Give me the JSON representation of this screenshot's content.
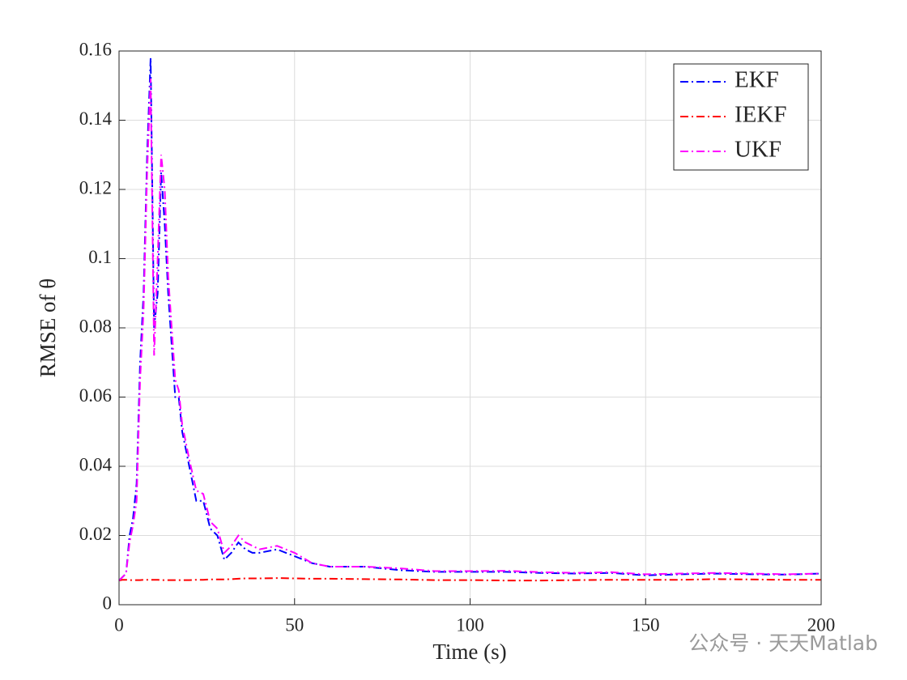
{
  "chart_data": {
    "type": "line",
    "x_label": "Time (s)",
    "y_label": "RMSE of θ",
    "xlim": [
      0,
      200
    ],
    "xticks": [
      0,
      50,
      100,
      150,
      200
    ],
    "ylim": [
      0,
      0.16
    ],
    "yticks": [
      0,
      0.02,
      0.04,
      0.06,
      0.08,
      0.1,
      0.12,
      0.14,
      0.16
    ],
    "grid": true,
    "legend": "upper-right",
    "line_style": "dash-dot",
    "watermark": "公众号 · 天天Matlab",
    "x": [
      0,
      1,
      2,
      3,
      4,
      5,
      6,
      7,
      8,
      9,
      10,
      11,
      12,
      13,
      14,
      15,
      16,
      17,
      18,
      19,
      20,
      22,
      24,
      26,
      28,
      30,
      32,
      34,
      36,
      38,
      40,
      45,
      50,
      55,
      60,
      70,
      80,
      90,
      100,
      110,
      120,
      130,
      140,
      150,
      160,
      170,
      180,
      190,
      200
    ],
    "series": [
      {
        "name": "EKF",
        "color": "#0000ff",
        "values": [
          0.007,
          0.008,
          0.009,
          0.02,
          0.025,
          0.035,
          0.07,
          0.09,
          0.13,
          0.158,
          0.08,
          0.09,
          0.125,
          0.11,
          0.09,
          0.075,
          0.06,
          0.06,
          0.05,
          0.045,
          0.04,
          0.03,
          0.03,
          0.022,
          0.02,
          0.013,
          0.015,
          0.018,
          0.016,
          0.015,
          0.015,
          0.016,
          0.014,
          0.012,
          0.011,
          0.011,
          0.01,
          0.0095,
          0.0095,
          0.0095,
          0.0092,
          0.009,
          0.0092,
          0.0085,
          0.0088,
          0.009,
          0.0088,
          0.0087,
          0.009
        ]
      },
      {
        "name": "IEKF",
        "color": "#ff0000",
        "values": [
          0.007,
          0.0072,
          0.0072,
          0.0071,
          0.0071,
          0.0071,
          0.0071,
          0.0072,
          0.0072,
          0.0072,
          0.0072,
          0.0072,
          0.0071,
          0.0071,
          0.0071,
          0.0071,
          0.0071,
          0.0071,
          0.0071,
          0.0071,
          0.0071,
          0.0072,
          0.0072,
          0.0073,
          0.0073,
          0.0073,
          0.0074,
          0.0075,
          0.0076,
          0.0076,
          0.0076,
          0.0077,
          0.0076,
          0.0075,
          0.0075,
          0.0074,
          0.0073,
          0.0071,
          0.0071,
          0.007,
          0.007,
          0.0071,
          0.0072,
          0.0072,
          0.0072,
          0.0074,
          0.0073,
          0.0072,
          0.0072
        ]
      },
      {
        "name": "UKF",
        "color": "#ff00ff",
        "values": [
          0.007,
          0.008,
          0.009,
          0.018,
          0.023,
          0.03,
          0.065,
          0.085,
          0.125,
          0.152,
          0.072,
          0.1,
          0.13,
          0.12,
          0.095,
          0.08,
          0.065,
          0.062,
          0.052,
          0.047,
          0.042,
          0.033,
          0.032,
          0.024,
          0.022,
          0.015,
          0.017,
          0.02,
          0.018,
          0.017,
          0.016,
          0.017,
          0.015,
          0.012,
          0.011,
          0.011,
          0.0105,
          0.0097,
          0.0097,
          0.0098,
          0.0094,
          0.0092,
          0.0094,
          0.0088,
          0.009,
          0.0092,
          0.009,
          0.0088,
          0.009
        ]
      }
    ]
  }
}
